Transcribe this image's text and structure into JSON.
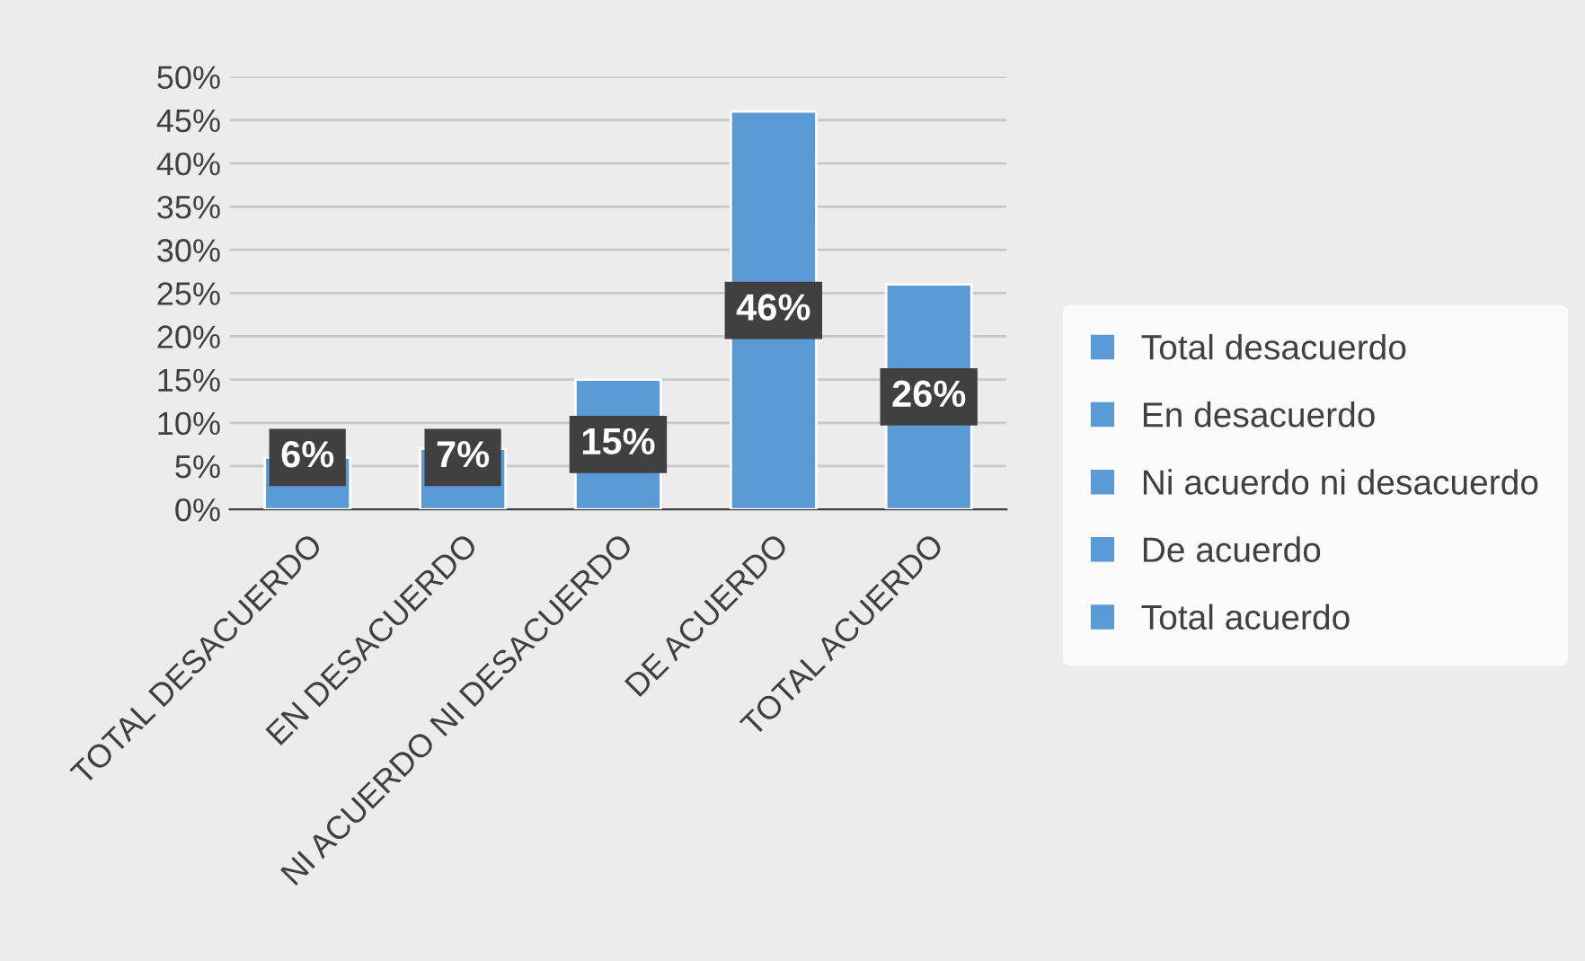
{
  "chart_data": {
    "type": "bar",
    "categories": [
      "TOTAL DESACUERDO",
      "EN DESACUERDO",
      "NI ACUERDO NI DESACUERDO",
      "DE ACUERDO",
      "TOTAL ACUERDO"
    ],
    "series": [
      {
        "name": "Total desacuerdo",
        "color": "#5b9bd5",
        "values": [
          6,
          null,
          null,
          null,
          null
        ],
        "value_labels": [
          "6%",
          null,
          null,
          null,
          null
        ]
      },
      {
        "name": "En desacuerdo",
        "color": "#5b9bd5",
        "values": [
          null,
          7,
          null,
          null,
          null
        ],
        "value_labels": [
          null,
          "7%",
          null,
          null,
          null
        ]
      },
      {
        "name": "Ni acuerdo ni desacuerdo",
        "color": "#5b9bd5",
        "values": [
          null,
          null,
          15,
          null,
          null
        ],
        "value_labels": [
          null,
          null,
          "15%",
          null,
          null
        ]
      },
      {
        "name": "De acuerdo",
        "color": "#5b9bd5",
        "values": [
          null,
          null,
          null,
          46,
          null
        ],
        "value_labels": [
          null,
          null,
          null,
          "46%",
          null
        ]
      },
      {
        "name": "Total acuerdo",
        "color": "#5b9bd5",
        "values": [
          null,
          null,
          null,
          null,
          26
        ],
        "value_labels": [
          null,
          null,
          null,
          null,
          "26%"
        ]
      }
    ],
    "ylim": [
      0,
      50
    ],
    "yticks": [
      {
        "value": 0,
        "label": "0%"
      },
      {
        "value": 5,
        "label": "5%"
      },
      {
        "value": 10,
        "label": "10%"
      },
      {
        "value": 15,
        "label": "15%"
      },
      {
        "value": 20,
        "label": "20%"
      },
      {
        "value": 25,
        "label": "25%"
      },
      {
        "value": 30,
        "label": "30%"
      },
      {
        "value": 35,
        "label": "35%"
      },
      {
        "value": 40,
        "label": "40%"
      },
      {
        "value": 45,
        "label": "45%"
      },
      {
        "value": 50,
        "label": "50%"
      }
    ],
    "grid": "y",
    "legend": "right"
  }
}
